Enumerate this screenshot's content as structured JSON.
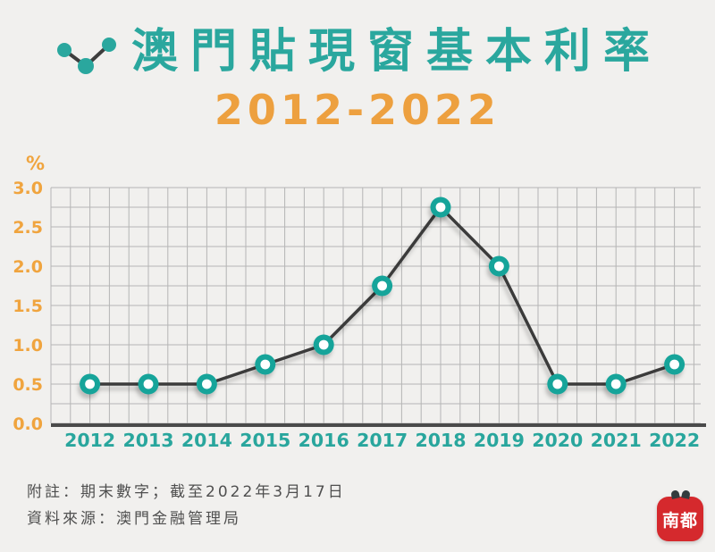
{
  "header": {
    "icon": "line-chart-icon",
    "title": "澳門貼現窗基本利率",
    "subtitle": "2012-2022"
  },
  "chart_data": {
    "type": "line",
    "title": "澳門貼現窗基本利率 2012-2022",
    "unit_label": "%",
    "categories": [
      "2012",
      "2013",
      "2014",
      "2015",
      "2016",
      "2017",
      "2018",
      "2019",
      "2020",
      "2021",
      "2022"
    ],
    "values": [
      0.5,
      0.5,
      0.5,
      0.75,
      1.0,
      1.75,
      2.75,
      2.0,
      0.5,
      0.5,
      0.75
    ],
    "ylim": [
      0.0,
      3.0
    ],
    "y_ticks": [
      3.0,
      2.5,
      2.0,
      1.5,
      1.0,
      0.5,
      0.0
    ],
    "y_minor_step": 0.25,
    "grid": true,
    "legend": false,
    "styles": {
      "line_color": "#3b3b3b",
      "marker_ring_color": "#15a49a",
      "marker_core_color": "#ffffff",
      "grid_color": "#b5b5b5",
      "axis_color": "#4a4a4a",
      "y_tick_color": "#f0a43e",
      "x_tick_color": "#29a69d"
    }
  },
  "footer": {
    "note": "附註：期末數字；截至2022年3月17日",
    "source": "資料來源：澳門金融管理局"
  },
  "logo": {
    "text": "南都",
    "background_color": "#d5292d"
  },
  "theme": {
    "background": "#f1f0ee",
    "title_color": "#2aa79e",
    "subtitle_color": "#eda03f",
    "footer_color": "#4f4f4f"
  }
}
